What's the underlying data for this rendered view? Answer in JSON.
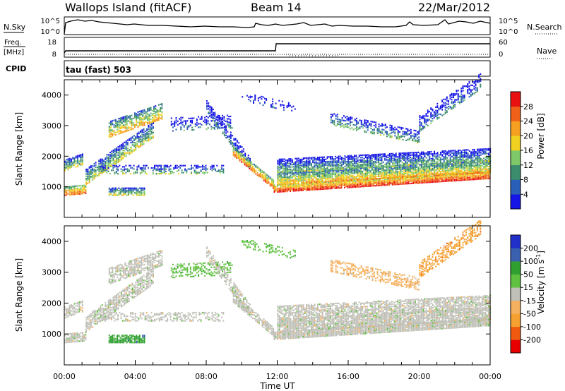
{
  "header": {
    "title": "Wallops Island (fitACF)",
    "beam": "Beam 14",
    "date": "22/Mar/2012"
  },
  "summary_panels": {
    "nsky_label": "N.Sky",
    "nsearch_label": "N.Search",
    "noise_ticks_left": [
      "10^5",
      "10^0"
    ],
    "noise_ticks_right": [
      "10^5",
      "10^0"
    ],
    "freq_label_1": "Freq.",
    "freq_label_2": "[MHz]",
    "freq_ticks": [
      "18",
      "8"
    ],
    "nave_label": "Nave",
    "nave_ticks": [
      "60",
      "0"
    ],
    "cpid_label": "CPID",
    "cpid_text": "tau (fast) 503"
  },
  "chart_data": [
    {
      "type": "heatmap",
      "name": "power",
      "ylabel": "Slant Range [km]",
      "ylim": [
        0,
        4500
      ],
      "y_ticks": [
        "1000",
        "2000",
        "3000",
        "4000"
      ],
      "xlabel": "Time UT",
      "x_ticks": [
        "00:00",
        "04:00",
        "08:00",
        "12:00",
        "16:00",
        "20:00",
        "00:00"
      ],
      "colorbar": {
        "label": "Power [dB]",
        "ticks": [
          "4",
          "8",
          "12",
          "16",
          "20",
          "24",
          "28"
        ],
        "colors": [
          "#1515e6",
          "#2a5fb8",
          "#3c8c6e",
          "#7ec86a",
          "#f0d020",
          "#f5a020",
          "#f06018",
          "#e81010"
        ]
      }
    },
    {
      "type": "heatmap",
      "name": "velocity",
      "ylabel": "Slant Range [km]",
      "ylim": [
        0,
        4500
      ],
      "y_ticks": [
        "1000",
        "2000",
        "3000",
        "4000"
      ],
      "xlabel": "Time UT",
      "x_ticks": [
        "00:00",
        "04:00",
        "08:00",
        "12:00",
        "16:00",
        "20:00",
        "00:00"
      ],
      "colorbar": {
        "label": "Velocity [m s",
        "label_sup": "-1",
        "label_end": "]",
        "ticks": [
          "-200",
          "-100",
          "-50",
          "-15",
          "15",
          "50",
          "100",
          "200"
        ],
        "colors": [
          "#e80000",
          "#f05a10",
          "#f5a030",
          "#f5b060",
          "#c0c0b8",
          "#60c040",
          "#30a030",
          "#3a60b0",
          "#2030c8"
        ]
      }
    }
  ]
}
